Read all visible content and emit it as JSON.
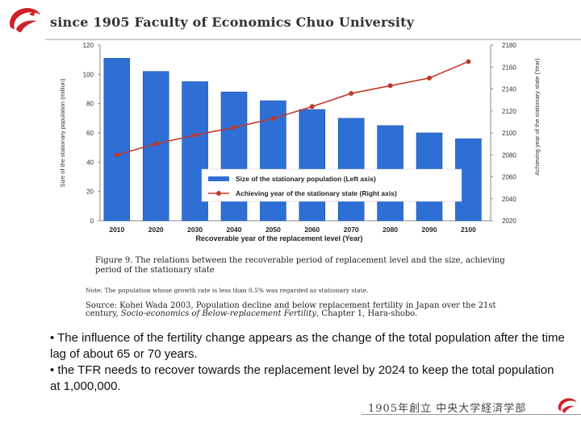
{
  "header": {
    "title": "since 1905 Faculty of Economics Chuo University",
    "logo_icon": "chuo-university-logo-icon"
  },
  "colors": {
    "bar": "#2e6fd6",
    "line": "#c0392b",
    "header_logo": "#d0202a"
  },
  "chart_data": {
    "type": "bar+line",
    "categories": [
      "2010",
      "2020",
      "2030",
      "2040",
      "2050",
      "2060",
      "2070",
      "2080",
      "2090",
      "2100"
    ],
    "series": [
      {
        "name": "Size of the stationary population (Left axis)",
        "type": "bar",
        "axis": "left",
        "values": [
          111,
          102,
          95,
          88,
          82,
          76,
          70,
          65,
          60,
          56
        ]
      },
      {
        "name": "Achieving year of the stationary state (Right axis)",
        "type": "line",
        "axis": "right",
        "values": [
          2080,
          2090,
          2098,
          2105,
          2113,
          2124,
          2136,
          2143,
          2150,
          2165
        ]
      }
    ],
    "xlabel": "Recoverable year of the replacement level (Year)",
    "ylabel_left": "Size of the stationary population (million)",
    "ylabel_right": "Achieving year of the stationary state (Year)",
    "ylim_left": [
      0,
      120
    ],
    "yticks_left": [
      "0",
      "20",
      "40",
      "60",
      "80",
      "100",
      "120"
    ],
    "ylim_right": [
      2020,
      2180
    ],
    "yticks_right": [
      "2020",
      "2040",
      "2060",
      "2080",
      "2100",
      "2120",
      "2140",
      "2160",
      "2180"
    ],
    "legend_position": "bottom-right",
    "grid": false
  },
  "caption": {
    "figure_title": "Figure 9. The relations between the recoverable period of replacement level and the size, achieving period of the stationary state",
    "note": "Note: The population whose growth rate is less than 0.5% was regarded as stationary state.",
    "source_prefix": "Source: Kohei Wada 2003, Population decline and below replacement fertility in Japan over the 21st century, ",
    "source_italic": "Socio-economics of Below-replacement Fertility",
    "source_suffix": ", Chapter 1, Hara-shobo."
  },
  "body": {
    "bullet1": "• The influence of the fertility change appears as the change of the total population after the time lag of about 65 or 70 years.",
    "bullet2": "• the TFR needs to recover towards the replacement level by 2024 to keep the total population at 1,000,000."
  },
  "footer": {
    "text": "1905年創立 中央大学経済学部",
    "logo_icon": "chuo-university-logo-icon"
  }
}
